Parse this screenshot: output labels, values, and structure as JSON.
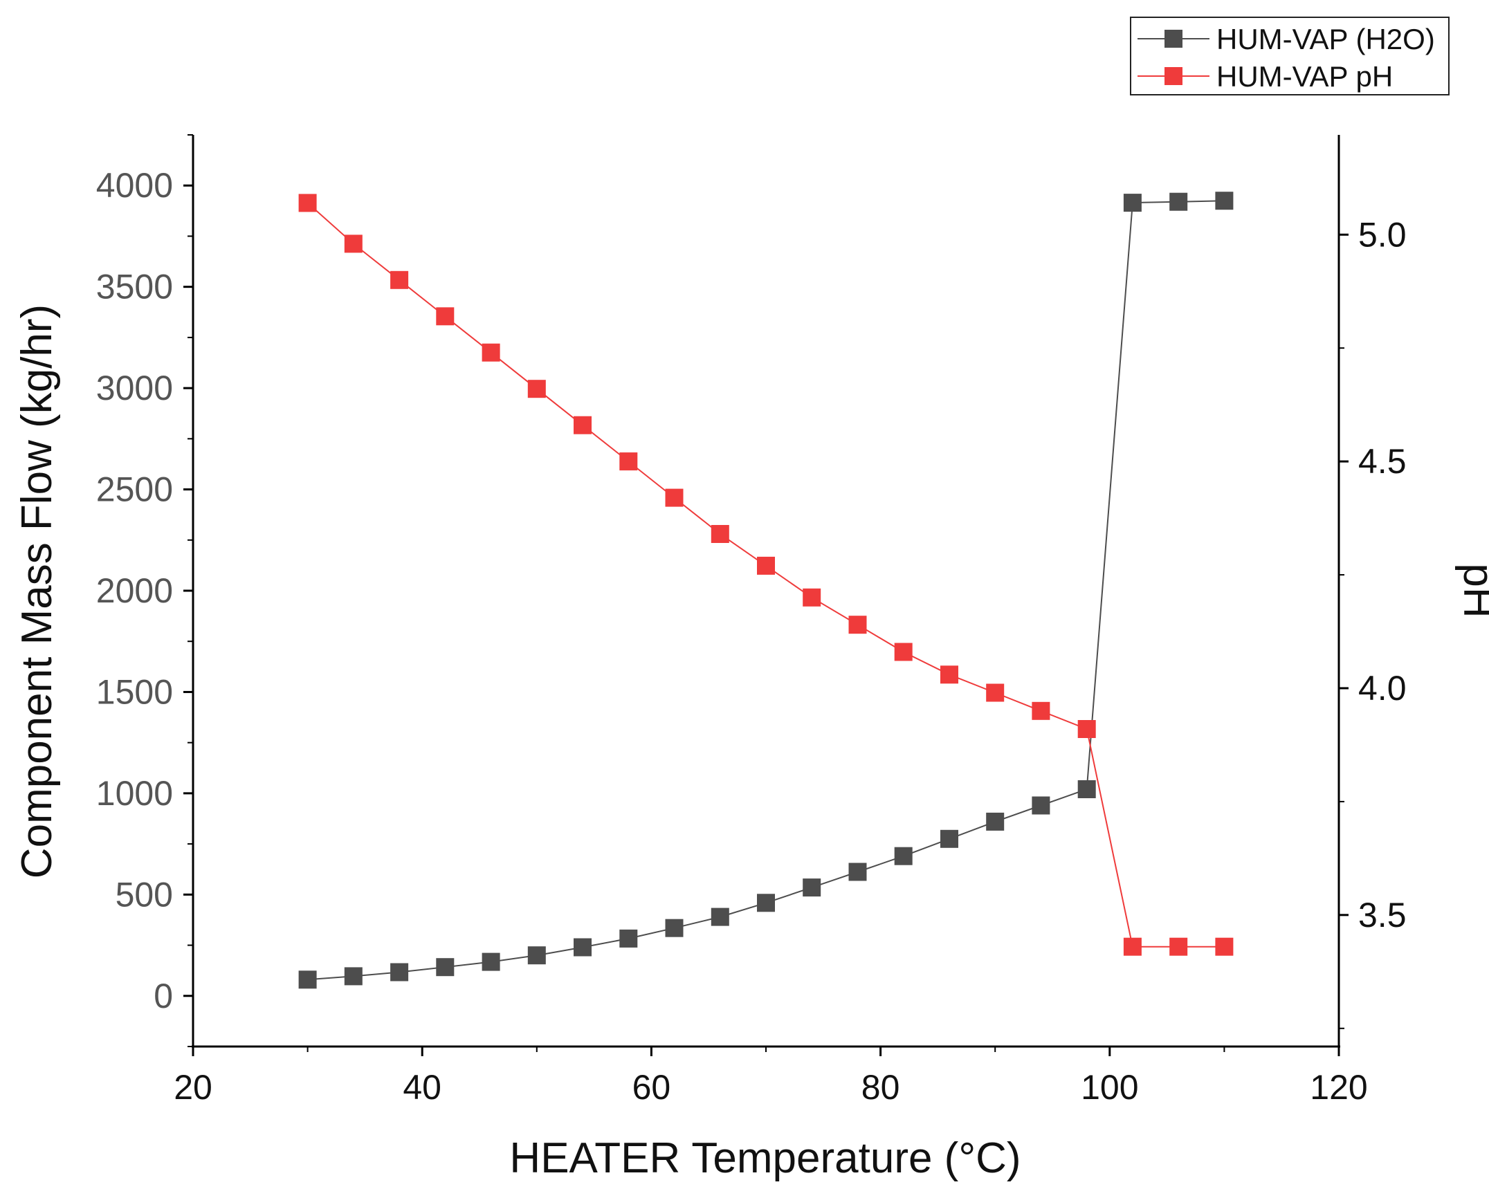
{
  "chart_data": {
    "type": "line",
    "xlabel": "HEATER Temperature (°C)",
    "ylabel": "Component Mass Flow (kg/hr)",
    "y2label": "pH",
    "xlim": [
      20,
      120
    ],
    "ylim": [
      -250,
      4250
    ],
    "y2lim": [
      3.21,
      5.22
    ],
    "x_ticks": [
      20,
      40,
      60,
      80,
      100,
      120
    ],
    "y_ticks": [
      0,
      500,
      1000,
      1500,
      2000,
      2500,
      3000,
      3500,
      4000
    ],
    "y2_ticks": [
      3.5,
      4.0,
      4.5,
      5.0
    ],
    "y2_tick_labels": [
      "3.5",
      "4.0",
      "4.5",
      "5.0"
    ],
    "grid": false,
    "legend_position": "top-right",
    "x": [
      30,
      34,
      38,
      42,
      46,
      50,
      54,
      58,
      62,
      66,
      70,
      74,
      78,
      82,
      86,
      90,
      94,
      98,
      102,
      106,
      110
    ],
    "series": [
      {
        "name": "HUM-VAP (H2O)",
        "axis": "left",
        "color": "#4d4d4d",
        "values": [
          80,
          97,
          117,
          142,
          168,
          200,
          240,
          283,
          335,
          390,
          459,
          535,
          612,
          690,
          775,
          860,
          940,
          1020,
          3915,
          3920,
          3925
        ]
      },
      {
        "name": "HUM-VAP pH",
        "axis": "right",
        "color": "#ef3b3b",
        "values": [
          5.07,
          4.98,
          4.9,
          4.82,
          4.74,
          4.66,
          4.58,
          4.5,
          4.42,
          4.34,
          4.27,
          4.2,
          4.14,
          4.08,
          4.03,
          3.99,
          3.95,
          3.91,
          3.43,
          3.43,
          3.43
        ]
      }
    ]
  }
}
